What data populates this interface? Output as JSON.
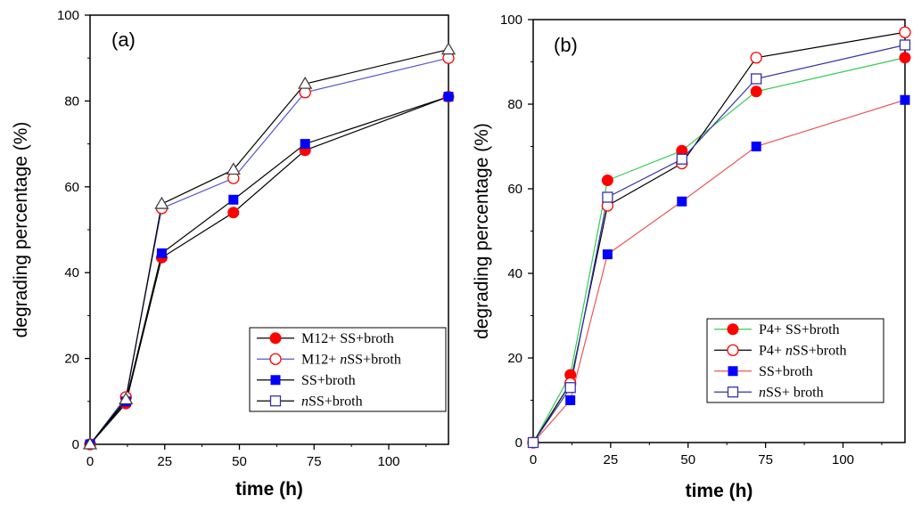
{
  "chart_data": [
    {
      "type": "line",
      "panel_label": "(a)",
      "xlabel": "time (h)",
      "ylabel": "degrading percentage (%)",
      "xlim": [
        0,
        120
      ],
      "ylim": [
        0,
        100
      ],
      "xticks": [
        0,
        25,
        50,
        75,
        100
      ],
      "yticks": [
        0,
        20,
        40,
        60,
        80,
        100
      ],
      "legend_position": "lower-right",
      "series": [
        {
          "name": "M12+ SS+broth",
          "legend_parts": [
            {
              "text": "M12+ SS+broth",
              "italic": false
            }
          ],
          "line_color": "#000000",
          "marker": "circle-filled",
          "marker_color": "#ff0000",
          "x": [
            0,
            12,
            24,
            48,
            72,
            120
          ],
          "y": [
            0,
            9.5,
            43.5,
            54,
            68.5,
            81
          ]
        },
        {
          "name": "M12+ nSS+broth",
          "legend_parts": [
            {
              "text": "M12+ ",
              "italic": false
            },
            {
              "text": "n",
              "italic": true
            },
            {
              "text": "SS+broth",
              "italic": false
            }
          ],
          "line_color": "#5555cc",
          "marker": "circle-open",
          "marker_color": "#ff0000",
          "x": [
            0,
            12,
            24,
            48,
            72,
            120
          ],
          "y": [
            0,
            11,
            55,
            62,
            82,
            90
          ]
        },
        {
          "name": "SS+broth",
          "legend_parts": [
            {
              "text": "SS+broth",
              "italic": false
            }
          ],
          "line_color": "#000000",
          "marker": "square-filled",
          "marker_color": "#0000ff",
          "x": [
            0,
            12,
            24,
            48,
            72,
            120
          ],
          "y": [
            0,
            10,
            44.5,
            57,
            70,
            81
          ]
        },
        {
          "name": "nSS+broth",
          "legend_parts": [
            {
              "text": "n",
              "italic": true
            },
            {
              "text": "SS+broth",
              "italic": false
            }
          ],
          "line_color": "#000000",
          "marker": "triangle-open",
          "marker_color": "#444444",
          "legend_marker": "square-open",
          "legend_marker_color": "#3333aa",
          "x": [
            0,
            12,
            24,
            48,
            72,
            120
          ],
          "y": [
            0,
            10.5,
            56,
            64,
            84,
            92
          ]
        }
      ]
    },
    {
      "type": "line",
      "panel_label": "(b)",
      "xlabel": "time (h)",
      "ylabel": "degrading percentage (%)",
      "xlim": [
        0,
        120
      ],
      "ylim": [
        0,
        100
      ],
      "xticks": [
        0,
        25,
        50,
        75,
        100
      ],
      "yticks": [
        0,
        20,
        40,
        60,
        80,
        100
      ],
      "legend_position": "lower-right",
      "series": [
        {
          "name": "P4+ SS+broth",
          "legend_parts": [
            {
              "text": "P4+ SS+broth",
              "italic": false
            }
          ],
          "line_color": "#33cc55",
          "marker": "circle-filled",
          "marker_color": "#ff0000",
          "x": [
            0,
            12,
            24,
            48,
            72,
            120
          ],
          "y": [
            0,
            16,
            62,
            69,
            83,
            91
          ]
        },
        {
          "name": "P4+ nSS+broth",
          "legend_parts": [
            {
              "text": "P4+ ",
              "italic": false
            },
            {
              "text": "n",
              "italic": true
            },
            {
              "text": "SS+broth",
              "italic": false
            }
          ],
          "line_color": "#000000",
          "marker": "circle-open",
          "marker_color": "#ff0000",
          "x": [
            0,
            12,
            24,
            48,
            72,
            120
          ],
          "y": [
            0,
            14,
            56,
            66,
            91,
            97
          ]
        },
        {
          "name": "SS+broth",
          "legend_parts": [
            {
              "text": "SS+broth",
              "italic": false
            }
          ],
          "line_color": "#ee5555",
          "marker": "square-filled",
          "marker_color": "#0000ff",
          "x": [
            0,
            12,
            24,
            48,
            72,
            120
          ],
          "y": [
            0,
            10,
            44.5,
            57,
            70,
            81
          ]
        },
        {
          "name": "nSS+ broth",
          "legend_parts": [
            {
              "text": "n",
              "italic": true
            },
            {
              "text": "SS+ broth",
              "italic": false
            }
          ],
          "line_color": "#3333aa",
          "marker": "square-open",
          "marker_color": "#3333aa",
          "x": [
            0,
            12,
            24,
            48,
            72,
            120
          ],
          "y": [
            0,
            13,
            58,
            67,
            86,
            94
          ]
        }
      ]
    }
  ]
}
